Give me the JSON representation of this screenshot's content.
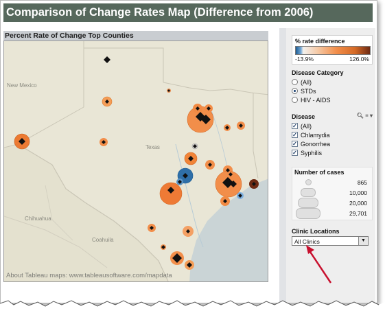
{
  "title": "Comparison of Change Rates Map (Difference from 2006)",
  "map": {
    "heading": "Percent Rate of Change Top Counties",
    "labels": {
      "new_mexico": "New Mexico",
      "texas": "Texas",
      "chihuahua": "Chihuahua",
      "coahuila": "Coahuila"
    },
    "credit": "About Tableau maps: www.tableausoftware.com/mapdata"
  },
  "rate_legend": {
    "title": "% rate difference",
    "min": "-13.9%",
    "max": "126.0%"
  },
  "disease_category": {
    "title": "Disease Category",
    "options": [
      {
        "label": "(All)",
        "selected": false
      },
      {
        "label": "STDs",
        "selected": true
      },
      {
        "label": "HIV - AIDS",
        "selected": false
      }
    ]
  },
  "disease": {
    "title": "Disease",
    "options": [
      {
        "label": "(All)",
        "checked": true
      },
      {
        "label": "Chlamydia",
        "checked": true
      },
      {
        "label": "Gonorrhea",
        "checked": true
      },
      {
        "label": "Syphilis",
        "checked": true
      }
    ]
  },
  "cases_legend": {
    "title": "Number of cases",
    "values": [
      "865",
      "10,000",
      "20,000",
      "29,701"
    ]
  },
  "clinic": {
    "title": "Clinic Locations",
    "value": "All Clinics"
  },
  "colors": {
    "title_bar": "#56685c",
    "orange": "#f28e4a",
    "blue": "#2f6fa8",
    "arrow": "#c8102e"
  }
}
